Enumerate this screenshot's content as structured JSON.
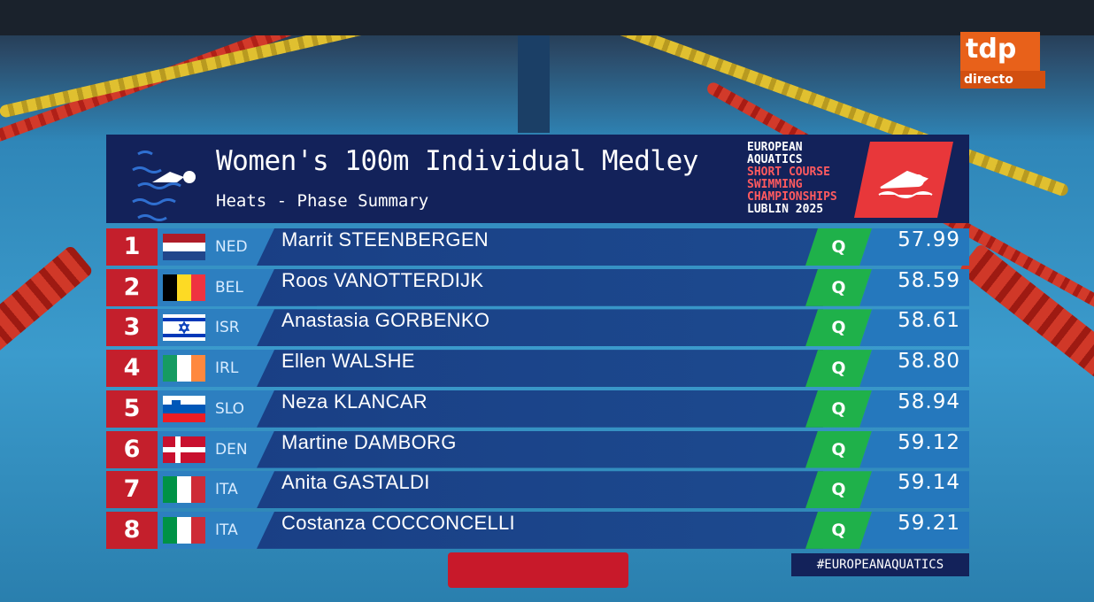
{
  "broadcaster": {
    "logo": "tdp",
    "label": "directo"
  },
  "header": {
    "title": "Women's 100m Individual Medley",
    "subtitle": "Heats - Phase Summary",
    "event_logo": [
      "EUROPEAN",
      "AQUATICS",
      "SHORT COURSE",
      "SWIMMING",
      "CHAMPIONSHIPS",
      "LUBLIN 2025"
    ]
  },
  "results": {
    "rows": [
      {
        "rank": 1,
        "country": "NED",
        "name": "Marrit STEENBERGEN",
        "status": "Q",
        "time": "57.99"
      },
      {
        "rank": 2,
        "country": "BEL",
        "name": "Roos VANOTTERDIJK",
        "status": "Q",
        "time": "58.59"
      },
      {
        "rank": 3,
        "country": "ISR",
        "name": "Anastasia GORBENKO",
        "status": "Q",
        "time": "58.61"
      },
      {
        "rank": 4,
        "country": "IRL",
        "name": "Ellen WALSHE",
        "status": "Q",
        "time": "58.80"
      },
      {
        "rank": 5,
        "country": "SLO",
        "name": "Neza KLANCAR",
        "status": "Q",
        "time": "58.94"
      },
      {
        "rank": 6,
        "country": "DEN",
        "name": "Martine DAMBORG",
        "status": "Q",
        "time": "59.12"
      },
      {
        "rank": 7,
        "country": "ITA",
        "name": "Anita GASTALDI",
        "status": "Q",
        "time": "59.14"
      },
      {
        "rank": 8,
        "country": "ITA",
        "name": "Costanza COCCONCELLI",
        "status": "Q",
        "time": "59.21"
      }
    ]
  },
  "hashtag": "#EUROPEANAQUATICS"
}
